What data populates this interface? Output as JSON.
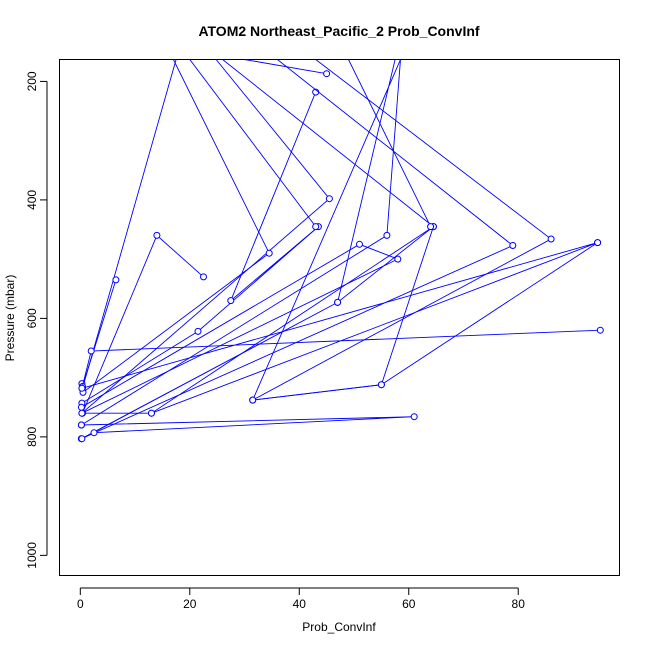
{
  "chart_data": {
    "type": "line",
    "title": "ATOM2 Northeast_Pacific_2 Prob_ConvInf",
    "xlabel": "Prob_ConvInf",
    "ylabel": "Pressure (mbar)",
    "xlim": [
      -3.8,
      98.5
    ],
    "ylim": [
      1034,
      163
    ],
    "y_reversed": true,
    "x_ticks": [
      0,
      20,
      40,
      60,
      80
    ],
    "y_ticks": [
      200,
      400,
      600,
      800,
      1000
    ],
    "grid": false,
    "series_color": "#0000ff",
    "series": [
      {
        "x": [
          0.4,
          17.5
        ],
        "y": [
          718,
          163
        ]
      },
      {
        "x": [
          45.0,
          30.0
        ],
        "y": [
          187,
          163
        ]
      },
      {
        "x": [
          43.0,
          27.5,
          43.5,
          21.5,
          0.3
        ],
        "y": [
          218,
          570,
          445,
          622,
          743
        ]
      },
      {
        "x": [
          24.8,
          45.5,
          0.3,
          13.0,
          64.5,
          26.0
        ],
        "y": [
          163,
          398,
          760,
          760,
          445,
          163
        ]
      },
      {
        "x": [
          0.3,
          0.4,
          6.5
        ],
        "y": [
          710,
          715,
          535
        ]
      },
      {
        "x": [
          0.3,
          0.5,
          34.5,
          17.0
        ],
        "y": [
          718,
          725,
          490,
          163
        ]
      },
      {
        "x": [
          0.4,
          14.0,
          22.5
        ],
        "y": [
          760,
          460,
          530
        ]
      },
      {
        "x": [
          0.2,
          51.0,
          58.0,
          0.3
        ],
        "y": [
          750,
          475,
          500,
          760
        ]
      },
      {
        "x": [
          0.2,
          56.0,
          58.5,
          31.5,
          55.0,
          64.5,
          47.0,
          57.5
        ],
        "y": [
          780,
          460,
          163,
          738,
          712,
          445,
          573,
          163
        ]
      },
      {
        "x": [
          0.2,
          79.0,
          36.0
        ],
        "y": [
          803,
          477,
          163
        ]
      },
      {
        "x": [
          0.2,
          47.0,
          0.3
        ],
        "y": [
          803,
          573,
          803
        ]
      },
      {
        "x": [
          2.5,
          61.0,
          0.2
        ],
        "y": [
          793,
          766,
          780
        ]
      },
      {
        "x": [
          95.0,
          2.0,
          0.3,
          94.5,
          13.0
        ],
        "y": [
          620,
          655,
          718,
          472,
          760
        ]
      },
      {
        "x": [
          94.5,
          55.0,
          31.5,
          86.0,
          43.0
        ],
        "y": [
          472,
          712,
          738,
          466,
          163
        ]
      },
      {
        "x": [
          64.0,
          49.0
        ],
        "y": [
          445,
          163
        ]
      },
      {
        "x": [
          43.0,
          20.0
        ],
        "y": [
          445,
          163
        ]
      }
    ]
  }
}
